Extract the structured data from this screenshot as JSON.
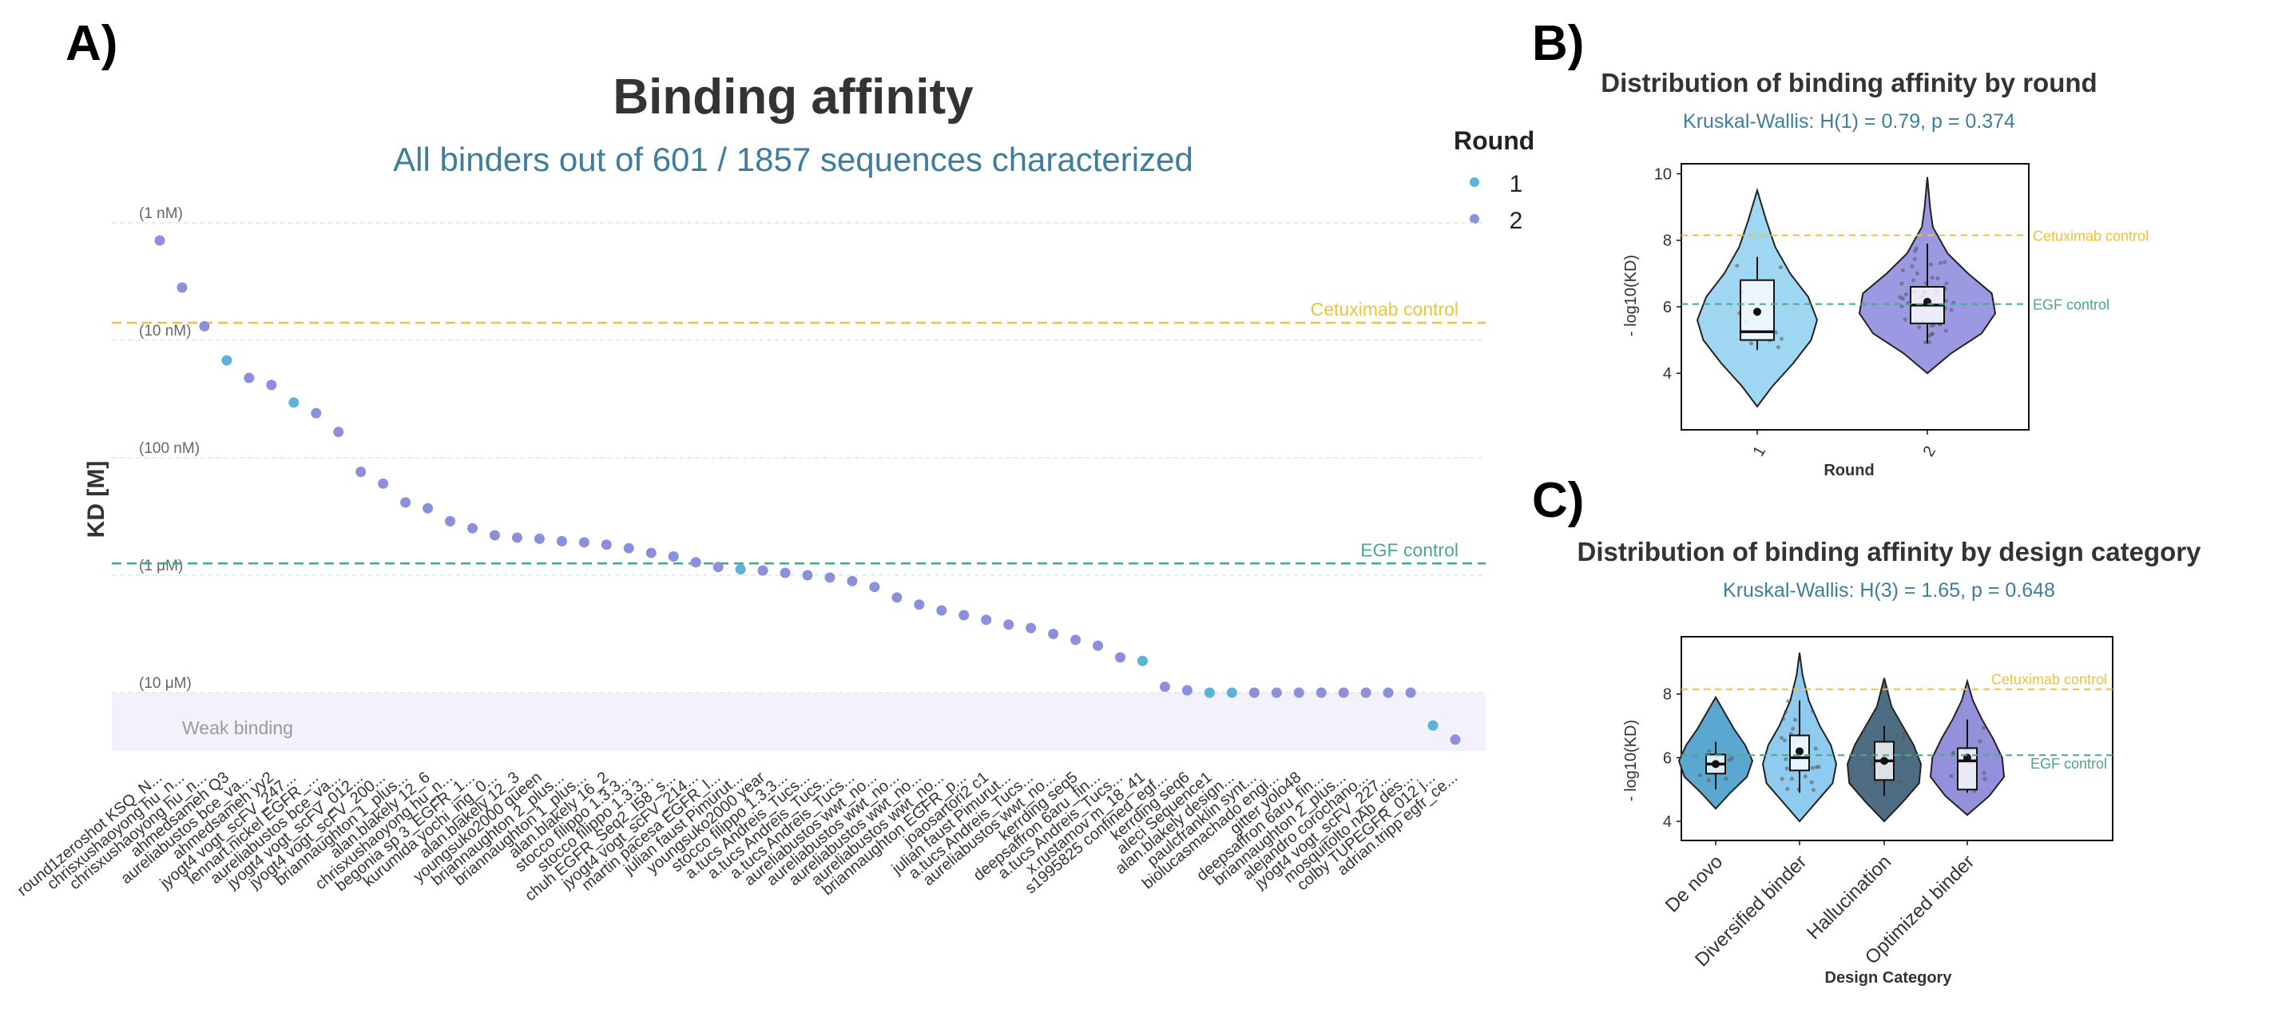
{
  "panels": {
    "a": "A)",
    "b": "B)",
    "c": "C)"
  },
  "colors": {
    "round1": "#5bb3dc",
    "round2": "#8b8fdc",
    "cetuximab": "#ecc33a",
    "egf": "#4aa88a",
    "subtitle": "#3e7e9c",
    "title": "#333333",
    "violin_round1": "#9fd6f2",
    "violin_round2": "#9a99e2",
    "violin_denovo": "#5aa7d2",
    "violin_diversified": "#8ecbee",
    "violin_hallucination": "#4f6d82",
    "violin_optimized": "#9391dc",
    "weak_band": "#f3f1fb"
  },
  "chart_data": [
    {
      "type": "scatter",
      "title": "Binding affinity",
      "subtitle": "All binders out of 601 / 1857 sequences characterized",
      "ylabel": "KD [M]",
      "xlabel": "",
      "log10_kd_range": [
        -9.1,
        -4.5
      ],
      "y_reference_labels": [
        {
          "log10_kd": -9,
          "label": "(1 nM)"
        },
        {
          "log10_kd": -8,
          "label": "(10 nM)"
        },
        {
          "log10_kd": -7,
          "label": "(100 nM)"
        },
        {
          "log10_kd": -6,
          "label": "(1 μM)"
        },
        {
          "log10_kd": -5,
          "label": "(10 μM)"
        }
      ],
      "reference_lines": [
        {
          "name": "Cetuximab control",
          "log10_kd": -8.15,
          "color": "#ecc33a"
        },
        {
          "name": "EGF control",
          "log10_kd": -6.1,
          "color": "#4aa88a"
        }
      ],
      "weak_binding_label": "Weak binding",
      "weak_binding_region_log10_kd": -5,
      "legend": {
        "title": "Round",
        "position": "right",
        "entries": [
          "1",
          "2"
        ]
      },
      "categories": [
        "round1zeroshot KSQ_N...",
        "chrisxushaoyong hu_n...",
        "chrisxushaoyong hu_n...",
        "ahmedsameh Q3",
        "aureliabustos bce_va...",
        "ahmedsameh yy2",
        "jyogt4 vogt_scFV_247...",
        "lennart.nickel EGFR_...",
        "aureliabustos bce_va...",
        "jyogt4 vogt_scFV_012...",
        "jyogt4 vogt_scFV_200...",
        "briannaughton 1_plus...",
        "alan.blakely 12_6",
        "chrisxushaoyong hu_n...",
        "begonia sp 3_EGFR_1...",
        "kurumida yochi_ing_0...",
        "alan.blakely 12_3",
        "youngsuko2000 queen",
        "briannaughton 2_plus...",
        "briannaughton 1_plus...",
        "alan.blakely 16_2",
        "stocco filippo 1.3.3...",
        "stocco filippo 1.3.3...",
        "chuh EGFR_Seq2_I58_s...",
        "jyogt4 vogt_scFV_214...",
        "martin pacesa EGFR_l...",
        "julian faust Pimurut...",
        "youngsuko2000 year",
        "stocco filippo 1.3.3...",
        "a.tucs Andreis_Tucs...",
        "a.tucs Andreis_Tucs...",
        "a.tucs Andreis_Tucs...",
        "aureliabustos wwt_no...",
        "aureliabustos wwt_no...",
        "aureliabustos wwt_no...",
        "aureliabustos wwt_no...",
        "briannaughton EGFR_p...",
        "joaosartori2 c1",
        "julian faust Pimurut...",
        "a.tucs Andreis_Tucs...",
        "aureliabustos wwt_no...",
        "kerrding seq5",
        "deepsaffron 6aru_fin...",
        "a.tucs Andreis_Tucs...",
        "x.rustamov m_18_41",
        "s1995825 confined_egf...",
        "kerrding seq6",
        "aleci Sequence1",
        "alan.blakely design...",
        "paulcfranklin synt...",
        "biolucasmachado engi...",
        "gitter yolo48",
        "deepsaffron 6aru_fin...",
        "briannaughton 2_plus...",
        "alejandro corochano...",
        "jyogt4 vogt_scFV_227...",
        "mosquitolto nAb_des...",
        "colby TUPEGFR_012 j...",
        "adrian.tripp egfr_ce..."
      ],
      "series": [
        {
          "name": "Round",
          "log10_kd": [
            -8.85,
            -8.45,
            -8.12,
            -7.83,
            -7.68,
            -7.62,
            -7.47,
            -7.38,
            -7.22,
            -6.88,
            -6.78,
            -6.62,
            -6.57,
            -6.46,
            -6.4,
            -6.34,
            -6.32,
            -6.31,
            -6.29,
            -6.28,
            -6.26,
            -6.23,
            -6.19,
            -6.16,
            -6.11,
            -6.07,
            -6.05,
            -6.04,
            -6.02,
            -6.0,
            -5.98,
            -5.95,
            -5.9,
            -5.81,
            -5.75,
            -5.7,
            -5.66,
            -5.62,
            -5.58,
            -5.55,
            -5.5,
            -5.45,
            -5.4,
            -5.3,
            -5.27,
            -5.05,
            -5.02,
            -5.0,
            -5.0,
            -5.0,
            -5.0,
            -5.0,
            -5.0,
            -5.0,
            -5.0,
            -5.0,
            -5.0,
            -4.72,
            -4.6
          ],
          "round": [
            2,
            2,
            2,
            1,
            2,
            2,
            1,
            2,
            2,
            2,
            2,
            2,
            2,
            2,
            2,
            2,
            2,
            2,
            2,
            2,
            2,
            2,
            2,
            2,
            2,
            2,
            1,
            2,
            2,
            2,
            2,
            2,
            2,
            2,
            2,
            2,
            2,
            2,
            2,
            2,
            2,
            2,
            2,
            2,
            1,
            2,
            2,
            1,
            1,
            2,
            2,
            2,
            2,
            2,
            2,
            2,
            2,
            1,
            2
          ]
        }
      ]
    },
    {
      "type": "violin",
      "title": "Distribution of binding affinity by round",
      "subtitle": "Kruskal-Wallis: H(1) = 0.79, p = 0.374",
      "xlabel": "Round",
      "ylabel": "- log10(KD)",
      "ylim": [
        2.3,
        10.3
      ],
      "yticks": [
        4,
        6,
        8,
        10
      ],
      "categories": [
        "1",
        "2"
      ],
      "reference_lines": [
        {
          "name": "Cetuximab control",
          "value": 8.15
        },
        {
          "name": "EGF control",
          "value": 6.08
        }
      ],
      "boxes": [
        {
          "category": "1",
          "q1": 5.0,
          "median": 5.25,
          "q3": 6.8,
          "whisker_low": 4.7,
          "whisker_high": 7.5,
          "mean": 5.85
        },
        {
          "category": "2",
          "q1": 5.5,
          "median": 6.05,
          "q3": 6.6,
          "whisker_low": 4.9,
          "whisker_high": 7.9,
          "mean": 6.15
        }
      ]
    },
    {
      "type": "violin",
      "title": "Distribution of binding affinity by design category",
      "subtitle": "Kruskal-Wallis: H(3) = 1.65, p = 0.648",
      "xlabel": "Design Category",
      "ylabel": "- log10(KD)",
      "ylim": [
        3.4,
        9.8
      ],
      "yticks": [
        4,
        6,
        8
      ],
      "categories": [
        "De novo",
        "Diversified binder",
        "Hallucination",
        "Optimized binder"
      ],
      "reference_lines": [
        {
          "name": "Cetuximab control",
          "value": 8.15
        },
        {
          "name": "EGF control",
          "value": 6.08
        }
      ],
      "boxes": [
        {
          "category": "De novo",
          "q1": 5.5,
          "median": 5.8,
          "q3": 6.1,
          "whisker_low": 5.0,
          "whisker_high": 6.5,
          "mean": 5.8
        },
        {
          "category": "Diversified binder",
          "q1": 5.6,
          "median": 6.0,
          "q3": 6.7,
          "whisker_low": 4.9,
          "whisker_high": 7.8,
          "mean": 6.2
        },
        {
          "category": "Hallucination",
          "q1": 5.3,
          "median": 5.9,
          "q3": 6.5,
          "whisker_low": 4.8,
          "whisker_high": 7.0,
          "mean": 5.9
        },
        {
          "category": "Optimized binder",
          "q1": 5.0,
          "median": 5.9,
          "q3": 6.3,
          "whisker_low": 4.9,
          "whisker_high": 7.2,
          "mean": 6.0
        }
      ]
    }
  ]
}
